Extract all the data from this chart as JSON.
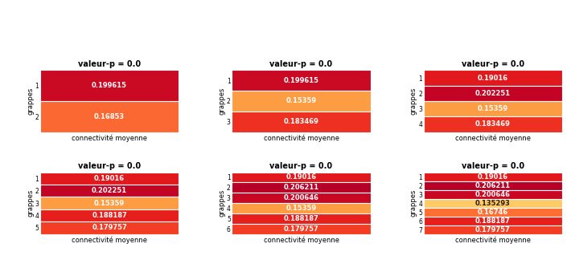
{
  "panels": [
    {
      "K": 2,
      "title": "valeur-p = 0.0",
      "xlabel": "connectivité moyenne",
      "ylabel": "grappes",
      "values": [
        0.199615,
        0.16853
      ],
      "labels": [
        "1",
        "2"
      ]
    },
    {
      "K": 3,
      "title": "valeur-p = 0.0",
      "xlabel": "connectivité moyenne",
      "ylabel": "grappes",
      "values": [
        0.199615,
        0.15359,
        0.183469
      ],
      "labels": [
        "1",
        "2",
        "3"
      ]
    },
    {
      "K": 4,
      "title": "valeur-p = 0.0",
      "xlabel": "connectivité moyenne",
      "ylabel": "grappes",
      "values": [
        0.19016,
        0.202251,
        0.15359,
        0.183469
      ],
      "labels": [
        "1",
        "2",
        "3",
        "4"
      ]
    },
    {
      "K": 5,
      "title": "valeur-p = 0.0",
      "xlabel": "connectivité moyenne",
      "ylabel": "grappes",
      "values": [
        0.19016,
        0.202251,
        0.15359,
        0.188187,
        0.179757
      ],
      "labels": [
        "1",
        "2",
        "3",
        "4",
        "5"
      ]
    },
    {
      "K": 6,
      "title": "valeur-p = 0.0",
      "xlabel": "connectivité moyenne",
      "ylabel": "grappes",
      "values": [
        0.19016,
        0.206211,
        0.200646,
        0.15359,
        0.188187,
        0.179757
      ],
      "labels": [
        "1",
        "2",
        "3",
        "4",
        "5",
        "6"
      ]
    },
    {
      "K": 7,
      "title": "valeur-p = 0.0",
      "xlabel": "connectivité moyenne",
      "ylabel": "grappes",
      "values": [
        0.19016,
        0.206211,
        0.200646,
        0.135293,
        0.16746,
        0.188187,
        0.179757
      ],
      "labels": [
        "1",
        "2",
        "3",
        "4",
        "5",
        "6",
        "7"
      ]
    }
  ],
  "cmap": "YlOrRd",
  "text_color_dark": "#2d1a00",
  "text_color_light": "white",
  "title_fontsize": 7,
  "label_fontsize": 6,
  "value_fontsize": 6,
  "tick_fontsize": 5.5,
  "vmin": 0.1,
  "vmax": 0.22
}
